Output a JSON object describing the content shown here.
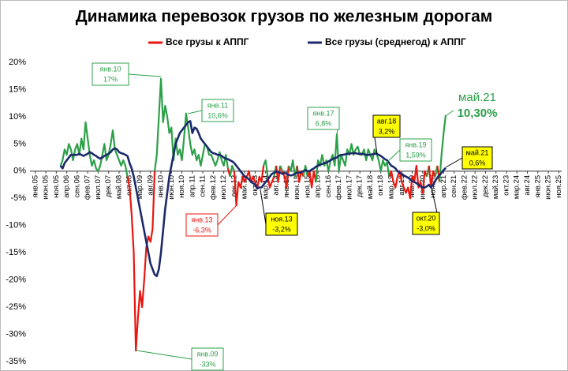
{
  "chart_data": {
    "type": "line",
    "title": "Динамика перевозок грузов по железным дорогам",
    "categories": [
      "янв.05",
      null,
      null,
      null,
      null,
      "июн.05",
      null,
      null,
      null,
      null,
      "ноя.05",
      null,
      null,
      null,
      null,
      "апр.06",
      null,
      null,
      null,
      null,
      "сен.06",
      null,
      null,
      null,
      null,
      "фев.07",
      null,
      null,
      null,
      null,
      "июл.07",
      null,
      null,
      null,
      null,
      "дек.07",
      null,
      null,
      null,
      null,
      "май.08",
      null,
      null,
      null,
      null,
      "окт.08",
      null,
      null,
      null,
      null,
      "мар.09",
      null,
      null,
      null,
      null,
      "авг.09",
      null,
      null,
      null,
      null,
      "янв.10",
      null,
      null,
      null,
      null,
      "июн.10",
      null,
      null,
      null,
      null,
      "ноя.10",
      null,
      null,
      null,
      null,
      "апр.11",
      null,
      null,
      null,
      null,
      "сен.11",
      null,
      null,
      null,
      null,
      "фев.12",
      null,
      null,
      null,
      null,
      "июл.12",
      null,
      null,
      null,
      null,
      "дек.12",
      null,
      null,
      null,
      null,
      "май.13",
      null,
      null,
      null,
      null,
      "окт.13",
      null,
      null,
      null,
      null,
      "мар.14",
      null,
      null,
      null,
      null,
      "авг.14",
      null,
      null,
      null,
      null,
      "янв.15",
      null,
      null,
      null,
      null,
      "июн.15",
      null,
      null,
      null,
      null,
      "ноя.15",
      null,
      null,
      null,
      null,
      "апр.16",
      null,
      null,
      null,
      null,
      "сен.16",
      null,
      null,
      null,
      null,
      "фев.17",
      null,
      null,
      null,
      null,
      "июл.17",
      null,
      null,
      null,
      null,
      "дек.17",
      null,
      null,
      null,
      null,
      "май.18",
      null,
      null,
      null,
      null,
      "окт.18",
      null,
      null,
      null,
      null,
      "мар.19",
      null,
      null,
      null,
      null,
      "авг.19",
      null,
      null,
      null,
      null,
      "янв.20",
      null,
      null,
      null,
      null,
      "июн.20",
      null,
      null,
      null,
      null,
      "ноя.20",
      null,
      null,
      null,
      null,
      "апр.21",
      null,
      null,
      null,
      null,
      "сен.21",
      null,
      null,
      null,
      null,
      "фев.22",
      null,
      null,
      null,
      null,
      "июл.22",
      null,
      null,
      null,
      null,
      "дек.22",
      null,
      null,
      null,
      null,
      "май.23",
      null,
      null,
      null,
      null,
      "окт.23",
      null,
      null,
      null,
      null,
      "мар.24",
      null,
      null,
      null,
      null,
      "авг.24",
      null,
      null,
      null,
      null,
      "янв.25",
      null,
      null,
      null,
      null,
      "июн.25",
      null,
      null,
      null,
      null,
      "ноя.25"
    ],
    "series": [
      {
        "name": "Все грузы к АППГ",
        "color": "#e8170f",
        "positive_color": "#2ca048",
        "values": [
          null,
          null,
          null,
          null,
          null,
          null,
          null,
          null,
          null,
          null,
          null,
          null,
          1,
          2,
          4,
          3,
          5,
          4,
          2,
          4,
          5,
          3,
          6,
          4,
          9,
          6,
          3,
          1,
          2,
          0.5,
          0,
          1,
          3,
          5,
          2,
          3,
          5,
          7.5,
          4,
          3,
          2,
          1,
          2,
          1,
          -1,
          -3,
          -8,
          -15,
          -33,
          -27,
          -22,
          -25,
          -20,
          -14,
          -12,
          -13,
          -10.6,
          0,
          3,
          10,
          17,
          9,
          12,
          10,
          7,
          8,
          2,
          6,
          3,
          4,
          2,
          6,
          10.6,
          8,
          5,
          3,
          4,
          2,
          3,
          1,
          3,
          5,
          4.5,
          3,
          3,
          2,
          1,
          2,
          3.5,
          2,
          1,
          3,
          0.5,
          -1,
          1,
          0,
          -6.3,
          -2,
          -3,
          -1,
          -2,
          -1,
          0,
          -2,
          -1,
          -2,
          -3.2,
          -1,
          -2,
          1,
          2,
          -1,
          -3,
          -2,
          -1,
          1,
          -2,
          1,
          0,
          -1,
          -3,
          1,
          0,
          2,
          -1,
          1,
          -2,
          0,
          -1,
          1,
          -1,
          0,
          -3,
          0,
          -2,
          2,
          1,
          3,
          1,
          2,
          0,
          2,
          3,
          1,
          6.8,
          0,
          3,
          2,
          1,
          4,
          3,
          5,
          3,
          4,
          4.5,
          3,
          3,
          4,
          2,
          4,
          3,
          2,
          4,
          3.2,
          2,
          0,
          2,
          1,
          1.59,
          -1,
          0,
          -2,
          -3,
          -1,
          0,
          -2,
          -3,
          -4,
          -3,
          -5,
          -1,
          -2,
          1,
          -3,
          -2,
          -4,
          0,
          -1,
          1,
          -3,
          0,
          -1,
          1,
          -2,
          3,
          7,
          10.3,
          null,
          null,
          null,
          null,
          null,
          null,
          null,
          null,
          null,
          null,
          null,
          null,
          null,
          null,
          null,
          null,
          null,
          null,
          null,
          null,
          null,
          null,
          null,
          null,
          null,
          null,
          null,
          null,
          null,
          null,
          null,
          null,
          null,
          null,
          null,
          null,
          null,
          null,
          null,
          null,
          null,
          null,
          null,
          null,
          null,
          null,
          null,
          null,
          null,
          null,
          null,
          null,
          null,
          null
        ]
      },
      {
        "name": "Все грузы (среднегод) к АППГ",
        "color": "#1c2a6b",
        "values": [
          null,
          null,
          null,
          null,
          null,
          null,
          null,
          null,
          null,
          null,
          null,
          null,
          1,
          0.5,
          1.5,
          2,
          2.5,
          3,
          3,
          3,
          3,
          3.2,
          3,
          2.8,
          3,
          3.2,
          3.5,
          3.3,
          3,
          2.8,
          2.5,
          2.3,
          2.5,
          2.8,
          3,
          3.2,
          3.5,
          4,
          4.2,
          4,
          3.5,
          3.3,
          3.2,
          3,
          2.8,
          1.5,
          0.5,
          -1,
          -3,
          -5,
          -7,
          -9,
          -11,
          -13,
          -15,
          -17,
          -18,
          -19,
          -19.3,
          -18,
          -15,
          -11,
          -7,
          -4,
          -1,
          1,
          3,
          5,
          6,
          7,
          7.5,
          8,
          8.5,
          9,
          9.2,
          7,
          8,
          7.8,
          7,
          6,
          5.5,
          5,
          4.5,
          4,
          3.5,
          3.3,
          3.2,
          3,
          3,
          2.8,
          2.5,
          2.3,
          2.2,
          2,
          1.8,
          1.5,
          1,
          0.5,
          0,
          -0.5,
          -1,
          -1.2,
          -1.5,
          -2,
          -2.2,
          -2.5,
          -3.2,
          -3,
          -3,
          -2.5,
          -2,
          -1.5,
          -1,
          -0.5,
          -0.3,
          0,
          -0.2,
          -0.3,
          -0.5,
          -0.3,
          -0.5,
          -0.7,
          -0.8,
          -0.7,
          -0.5,
          -0.3,
          -0.3,
          -0.2,
          0,
          0.2,
          0,
          0,
          0.3,
          0.5,
          0.8,
          1,
          1.2,
          1.3,
          1.5,
          1.5,
          1.8,
          2,
          2.2,
          2.4,
          2.5,
          2.8,
          3,
          3,
          3.1,
          3.2,
          3.2,
          3.3,
          3.3,
          3.3,
          3.2,
          3.2,
          3.2,
          3.1,
          3,
          3,
          3,
          3.1,
          3.2,
          3.2,
          3,
          2.8,
          2.5,
          2.2,
          2,
          1.5,
          1,
          0.8,
          0.5,
          0,
          -0.3,
          -0.5,
          -0.8,
          -1,
          -1.2,
          -1.5,
          -1.8,
          -2,
          -2.2,
          -2.5,
          -2.8,
          -3,
          -3,
          -2.8,
          -2.5,
          -3,
          -2.5,
          -1.8,
          -1.2,
          -0.8,
          -0.3,
          0.2,
          0.6,
          null,
          null,
          null,
          null,
          null,
          null,
          null,
          null,
          null,
          null,
          null,
          null,
          null,
          null,
          null,
          null,
          null,
          null,
          null,
          null,
          null,
          null,
          null,
          null,
          null,
          null,
          null,
          null,
          null,
          null,
          null,
          null,
          null,
          null,
          null,
          null,
          null,
          null,
          null,
          null,
          null,
          null,
          null,
          null,
          null,
          null,
          null,
          null,
          null,
          null,
          null,
          null,
          null,
          null
        ]
      }
    ],
    "ylim": [
      -35,
      20
    ],
    "yticks": [
      {
        "value": -35,
        "label": "-35%"
      },
      {
        "value": -30,
        "label": "-30%"
      },
      {
        "value": -25,
        "label": "-25%"
      },
      {
        "value": -20,
        "label": "-20%"
      },
      {
        "value": -15,
        "label": "-15%"
      },
      {
        "value": -10,
        "label": "-10%"
      },
      {
        "value": -5,
        "label": "-5%"
      },
      {
        "value": 0,
        "label": "0%"
      },
      {
        "value": 5,
        "label": "5%"
      },
      {
        "value": 10,
        "label": "10%"
      },
      {
        "value": 15,
        "label": "15%"
      },
      {
        "value": 20,
        "label": "20%"
      }
    ],
    "grid": false,
    "legend": "top",
    "annotations": [
      {
        "date": "янв.10",
        "text": "17%",
        "color": "#2ca048",
        "fill": "#ffffff"
      },
      {
        "date": "янв.11",
        "text": "10,6%",
        "color": "#2ca048",
        "fill": "#ffffff"
      },
      {
        "date": "янв.13",
        "text": "-6,3%",
        "color": "#e8170f",
        "fill": "#ffffff"
      },
      {
        "date": "ноя.13",
        "text": "-3,2%",
        "color": "#000000",
        "fill": "#ffff00"
      },
      {
        "date": "янв.17",
        "text": "6,8%",
        "color": "#2ca048",
        "fill": "#ffffff"
      },
      {
        "date": "авг.18",
        "text": "3,2%",
        "color": "#000000",
        "fill": "#ffff00"
      },
      {
        "date": "янв.19",
        "text": "1,59%",
        "color": "#2ca048",
        "fill": "#ffffff"
      },
      {
        "date": "окт.20",
        "text": "-3,0%",
        "color": "#000000",
        "fill": "#ffff00"
      },
      {
        "date": "май.21",
        "text": "10,30%",
        "color": "#2ca048",
        "fill": "#ffffff"
      },
      {
        "date": "май.21",
        "text": "0,6%",
        "color": "#000000",
        "fill": "#ffff00"
      },
      {
        "date": "янв.09",
        "text": "-33%",
        "color": "#2ca048",
        "fill": "#ffffff"
      }
    ]
  }
}
